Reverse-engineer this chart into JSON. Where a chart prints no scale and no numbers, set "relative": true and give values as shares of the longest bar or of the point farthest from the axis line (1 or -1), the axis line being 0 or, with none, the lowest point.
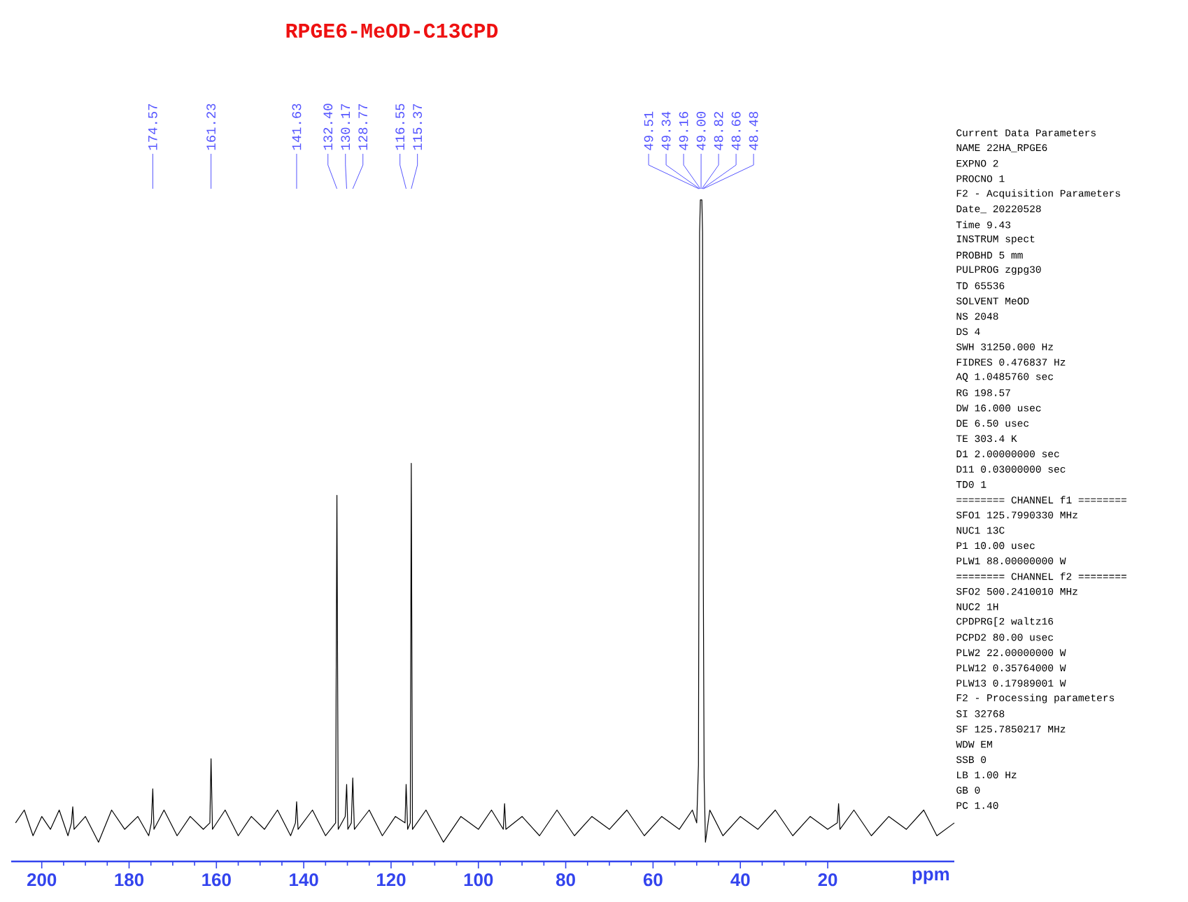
{
  "chart_data": {
    "type": "line",
    "title": "RPGE6-MeOD-C13CPD",
    "xlabel": "ppm",
    "relative": true,
    "xlim": [
      207,
      -9
    ],
    "xticks": [
      200,
      180,
      160,
      140,
      120,
      100,
      80,
      60,
      40,
      20
    ],
    "grid": false,
    "marker": "none",
    "line_style": "solid",
    "x": [
      206,
      204,
      202,
      200,
      198,
      196,
      194,
      193.2,
      192.9,
      192.6,
      190,
      187,
      184,
      181,
      178,
      175.5,
      174.9,
      174.57,
      174.3,
      172,
      169,
      166,
      163,
      161.5,
      161.23,
      160.9,
      158,
      155,
      152,
      149,
      146,
      143,
      141.9,
      141.63,
      141.3,
      138,
      135,
      132.7,
      132.4,
      132.1,
      130.5,
      130.17,
      129.9,
      129.1,
      128.77,
      128.4,
      125,
      122,
      119,
      116.8,
      116.55,
      116.2,
      115.6,
      115.37,
      115.1,
      112,
      108,
      104,
      100,
      97,
      94.3,
      94.0,
      93.7,
      90,
      86,
      82,
      78,
      74,
      70,
      66,
      62,
      58,
      54,
      51,
      50,
      49.6,
      49.5,
      49.34,
      49.16,
      49.0,
      48.82,
      48.66,
      48.48,
      48.3,
      48,
      47,
      44,
      40,
      36,
      32,
      28,
      24,
      20,
      17.8,
      17.5,
      17.2,
      14,
      10,
      6,
      2,
      -2,
      -5,
      -9
    ],
    "series": [
      {
        "color": "#000000",
        "values": [
          0.03,
          0.05,
          0.01,
          0.04,
          0.02,
          0.05,
          0.01,
          0.03,
          0.055,
          0.02,
          0.04,
          0.0,
          0.05,
          0.02,
          0.04,
          0.01,
          0.03,
          0.083,
          0.02,
          0.05,
          0.01,
          0.04,
          0.02,
          0.03,
          0.13,
          0.02,
          0.05,
          0.01,
          0.04,
          0.02,
          0.05,
          0.01,
          0.03,
          0.063,
          0.02,
          0.05,
          0.01,
          0.03,
          0.54,
          0.02,
          0.04,
          0.09,
          0.02,
          0.03,
          0.1,
          0.02,
          0.05,
          0.01,
          0.04,
          0.03,
          0.09,
          0.02,
          0.03,
          0.59,
          0.02,
          0.05,
          0.0,
          0.04,
          0.02,
          0.05,
          0.02,
          0.06,
          0.02,
          0.04,
          0.01,
          0.05,
          0.01,
          0.04,
          0.02,
          0.05,
          0.01,
          0.04,
          0.02,
          0.05,
          0.03,
          0.12,
          0.4,
          0.95,
          1.0,
          1.0,
          1.0,
          0.95,
          0.4,
          0.1,
          0.0,
          0.05,
          0.01,
          0.04,
          0.02,
          0.05,
          0.01,
          0.04,
          0.02,
          0.03,
          0.06,
          0.02,
          0.05,
          0.01,
          0.04,
          0.02,
          0.05,
          0.01,
          0.03
        ]
      }
    ],
    "annotations": [
      {
        "text": "174.57",
        "x": 174.57
      },
      {
        "text": "161.23",
        "x": 161.23
      },
      {
        "text": "141.63",
        "x": 141.63
      },
      {
        "text": "132.40",
        "x": 132.4
      },
      {
        "text": "130.17",
        "x": 130.17
      },
      {
        "text": "128.77",
        "x": 128.77
      },
      {
        "text": "116.55",
        "x": 116.55
      },
      {
        "text": "115.37",
        "x": 115.37
      },
      {
        "text": "49.51",
        "x": 49.51
      },
      {
        "text": "49.34",
        "x": 49.34
      },
      {
        "text": "49.16",
        "x": 49.16
      },
      {
        "text": "49.00",
        "x": 49.0
      },
      {
        "text": "48.82",
        "x": 48.82
      },
      {
        "text": "48.66",
        "x": 48.66
      },
      {
        "text": "48.48",
        "x": 48.48
      },
      "Current Data Parameters",
      "NAME 22HA_RPGE6",
      "EXPNO 2",
      "PROCNO 1",
      "F2 - Acquisition Parameters",
      "Date_ 20220528",
      "Time 9.43",
      "INSTRUM spect",
      "PROBHD 5 mm",
      "PULPROG zgpg30",
      "TD 65536",
      "SOLVENT MeOD",
      "NS 2048",
      "DS 4",
      "SWH 31250.000 Hz",
      "FIDRES 0.476837 Hz",
      "AQ 1.0485760 sec",
      "RG 198.57",
      "DW 16.000 usec",
      "DE 6.50 usec",
      "TE 303.4 K",
      "D1 2.00000000 sec",
      "D11 0.03000000 sec",
      "TD0 1",
      "======== CHANNEL f1 ========",
      "SFO1 125.7990330 MHz",
      "NUC1 13C",
      "P1 10.00 usec",
      "PLW1 88.00000000 W",
      "======== CHANNEL f2 ========",
      "SFO2 500.2410010 MHz",
      "NUC2 1H",
      "CPDPRG[2 waltz16",
      "PCPD2 80.00 usec",
      "PLW2 22.00000000 W",
      "PLW12 0.35764000 W",
      "PLW13 0.17989001 W",
      "F2 - Processing parameters",
      "SI 32768",
      "SF 125.7850217 MHz",
      "WDW EM",
      "SSB 0",
      "LB 1.00 Hz",
      "GB 0",
      "PC 1.40"
    ]
  }
}
